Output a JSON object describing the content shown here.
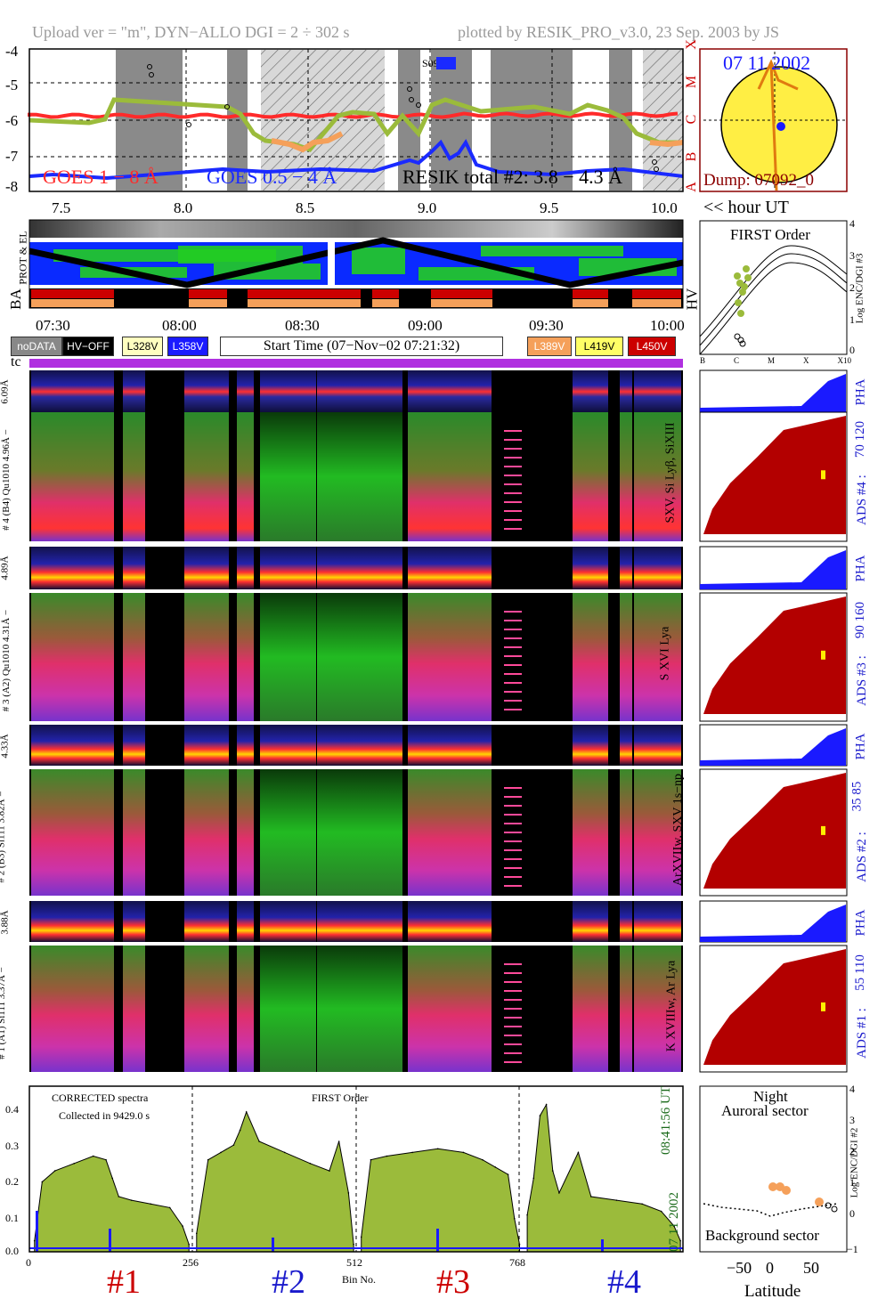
{
  "header": {
    "left": "Upload ver = \"m\", DYN−ALLO DGI =   2 ÷ 302 s",
    "right": "plotted by RESIK_PRO_v3.0, 23 Sep. 2003 by JS"
  },
  "goes_panel": {
    "y_ticks": [
      "-4",
      "-5",
      "-6",
      "-7",
      "-8"
    ],
    "x_ticks": [
      "7.5",
      "8.0",
      "8.5",
      "9.0",
      "9.5",
      "10.0"
    ],
    "x_unit": "<< hour UT",
    "class_letters": [
      "X",
      "M",
      "C",
      "B",
      "A"
    ],
    "label_goes1": "GOES 1 − 8 Å",
    "label_goes05": "GOES 0.5 − 4 Å",
    "label_resik": "RESIK total #2: 3.8 − 4.3 Å",
    "saa_label": "S09",
    "colors": {
      "goes1": "#ff2a2a",
      "goes05": "#1a2aff",
      "resik": "#9bbb3b",
      "orange": "#f5a05a"
    }
  },
  "sun_panel": {
    "date": "07 11 2002",
    "dump": "Dump: 07092_0"
  },
  "status_panel": {
    "row_labels": [
      "PROT & EL",
      "BA",
      "HV"
    ],
    "time_ticks": [
      "07:30",
      "08:00",
      "08:30",
      "09:00",
      "09:30",
      "10:00"
    ]
  },
  "legend": {
    "nodata": "noDATA",
    "hvoff": "HV−OFF",
    "l328": "L328V",
    "l358": "L358V",
    "start_time": "Start Time (07−Nov−02 07:21:32)",
    "l389": "L389V",
    "l419": "L419V",
    "l450": "L450V"
  },
  "tc_label": "tc",
  "first_order_panel": {
    "title": "FIRST Order",
    "y_ticks": [
      "4",
      "3",
      "2",
      "1",
      "0"
    ],
    "y_label": "Log ENC/DGI #3",
    "x_ticks": [
      "B",
      "C",
      "M",
      "X",
      "X10"
    ]
  },
  "channels": [
    {
      "pha_label": "6.09Å",
      "main_label": "# 4 (B4) Qu1010 4.96Å −",
      "lines": "SXV, Si Lyβ, SiXIII",
      "ads": "ADS #4 :",
      "range": "70 120"
    },
    {
      "pha_label": "4.89Å",
      "main_label": "# 3 (A2) Qu1010 4.31Å −",
      "lines": "S XVI Lya",
      "ads": "ADS #3 :",
      "range": "90 160"
    },
    {
      "pha_label": "4.33Å",
      "main_label": "# 2 (B3) Si111 3.82Å −",
      "lines": "ArXVIIw, SXV 1s−np",
      "ads": "ADS #2 :",
      "range": "35 85"
    },
    {
      "pha_label": "3.88Å",
      "main_label": "# 1 (A1) Si111 3.37Å −",
      "lines": "K XVIIIw, Ar Lya",
      "ads": "ADS #1 :",
      "range": "55 110"
    }
  ],
  "pha_word": "PHA",
  "spectrum_panel": {
    "title_left": "CORRECTED spectra",
    "collected": "Collected in  9429.0 s",
    "title_mid": "FIRST Order",
    "y_ticks": [
      "0.4",
      "0.3",
      "0.2",
      "0.1",
      "0.0"
    ],
    "x_ticks": [
      "0",
      "256",
      "512",
      "768"
    ],
    "x_label": "Bin No.",
    "time": "08:41:56 UT",
    "date": "07 11 2002",
    "channel_labels": [
      "#1",
      "#2",
      "#3",
      "#4"
    ]
  },
  "chart_data": {
    "type": "area",
    "title": "CORRECTED spectra",
    "xlabel": "Bin No.",
    "ylabel": "",
    "ylim": [
      0.0,
      0.45
    ],
    "xlim": [
      0,
      1024
    ],
    "series": [
      {
        "name": "#1",
        "x": [
          8,
          20,
          40,
          70,
          100,
          120,
          130,
          140,
          160,
          190,
          220,
          240,
          250
        ],
        "values": [
          0.03,
          0.19,
          0.22,
          0.24,
          0.26,
          0.25,
          0.2,
          0.15,
          0.14,
          0.13,
          0.12,
          0.07,
          0.02
        ]
      },
      {
        "name": "#2",
        "x": [
          262,
          280,
          300,
          320,
          330,
          340,
          360,
          400,
          440,
          470,
          485,
          500,
          508
        ],
        "values": [
          0.05,
          0.25,
          0.27,
          0.29,
          0.33,
          0.38,
          0.3,
          0.27,
          0.24,
          0.22,
          0.3,
          0.16,
          0.02
        ]
      },
      {
        "name": "#3",
        "x": [
          520,
          535,
          560,
          600,
          640,
          680,
          710,
          730,
          750,
          760,
          768
        ],
        "values": [
          0.04,
          0.25,
          0.26,
          0.27,
          0.28,
          0.27,
          0.25,
          0.23,
          0.21,
          0.09,
          0.02
        ]
      },
      {
        "name": "#4",
        "x": [
          780,
          790,
          800,
          810,
          820,
          830,
          860,
          880,
          920,
          960,
          990,
          1010,
          1020
        ],
        "values": [
          0.1,
          0.2,
          0.37,
          0.4,
          0.22,
          0.16,
          0.27,
          0.15,
          0.14,
          0.13,
          0.11,
          0.07,
          0.03
        ]
      }
    ]
  },
  "latitude_panel": {
    "title1": "Night",
    "title2": "Auroral sector",
    "bottom": "Background sector",
    "x_label": "Latitude",
    "x_ticks": [
      "−50",
      "0",
      "50"
    ],
    "y_ticks": [
      "4",
      "3",
      "2",
      "1",
      "0",
      "−1"
    ],
    "y_label": "Log ENC/DGI #2"
  }
}
